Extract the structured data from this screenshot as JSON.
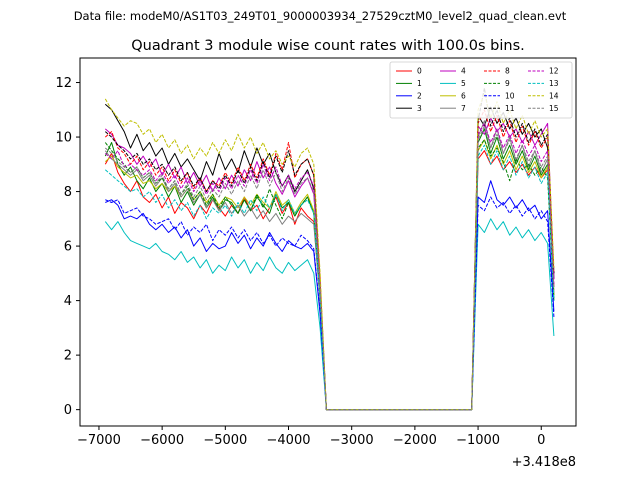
{
  "chart_data": {
    "type": "line",
    "suptitle": "Data file: modeM0/AS1T03_249T01_9000003934_27529cztM0_level2_quad_clean.evt",
    "title": "Quadrant 3 module wise count rates with 100.0s bins.",
    "xlabel": "",
    "ylabel": "",
    "x_offset_label": "+3.418e8",
    "xlim": [
      -7300,
      550
    ],
    "ylim": [
      -0.6,
      12.9
    ],
    "xticks": [
      -7000,
      -6000,
      -5000,
      -4000,
      -3000,
      -2000,
      -1000,
      0
    ],
    "xtick_labels": [
      "−7000",
      "−6000",
      "−5000",
      "−4000",
      "−3000",
      "−2000",
      "−1000",
      "0"
    ],
    "yticks": [
      0,
      2,
      4,
      6,
      8,
      10,
      12
    ],
    "ytick_labels": [
      "0",
      "2",
      "4",
      "6",
      "8",
      "10",
      "12"
    ],
    "legend_position": "upper right",
    "legend_columns": 4,
    "x": [
      -6900,
      -6800,
      -6700,
      -6600,
      -6500,
      -6400,
      -6300,
      -6200,
      -6100,
      -6000,
      -5900,
      -5800,
      -5700,
      -5600,
      -5500,
      -5400,
      -5300,
      -5200,
      -5100,
      -5000,
      -4900,
      -4800,
      -4700,
      -4600,
      -4500,
      -4400,
      -4300,
      -4200,
      -4100,
      -4000,
      -3900,
      -3800,
      -3700,
      -3600,
      -3500,
      -3400,
      -3300,
      -3200,
      -1100,
      -1000,
      -900,
      -800,
      -700,
      -600,
      -500,
      -400,
      -300,
      -200,
      -100,
      0,
      100,
      200
    ],
    "series": [
      {
        "name": "0",
        "color": "#ff0000",
        "dash": "solid",
        "values": [
          9.0,
          9.4,
          8.7,
          8.3,
          8.0,
          8.4,
          7.8,
          7.6,
          7.9,
          7.4,
          7.8,
          7.2,
          7.6,
          7.4,
          7.0,
          7.5,
          7.2,
          7.7,
          7.4,
          7.1,
          7.5,
          7.2,
          7.8,
          7.3,
          7.5,
          7.0,
          7.4,
          7.8,
          7.2,
          7.6,
          6.8,
          7.4,
          7.1,
          6.9,
          4.0,
          0.0,
          0.0,
          0.0,
          0.0,
          9.2,
          9.5,
          9.0,
          9.3,
          8.8,
          9.1,
          8.7,
          9.0,
          8.6,
          8.9,
          8.5,
          8.8,
          4.5
        ]
      },
      {
        "name": "1",
        "color": "#008000",
        "dash": "solid",
        "values": [
          9.3,
          9.8,
          9.0,
          8.6,
          8.9,
          8.4,
          8.1,
          8.5,
          8.0,
          8.3,
          7.8,
          8.2,
          7.6,
          8.0,
          7.5,
          7.9,
          7.4,
          7.8,
          7.3,
          7.7,
          7.6,
          7.2,
          7.7,
          7.3,
          7.8,
          7.5,
          7.2,
          7.9,
          7.4,
          7.6,
          7.1,
          7.5,
          7.8,
          7.2,
          4.2,
          0.0,
          0.0,
          0.0,
          0.0,
          9.8,
          10.3,
          9.4,
          10.0,
          9.2,
          9.7,
          9.0,
          9.5,
          8.8,
          9.3,
          8.6,
          9.0,
          4.0
        ]
      },
      {
        "name": "2",
        "color": "#0000ff",
        "dash": "solid",
        "values": [
          7.6,
          7.7,
          7.5,
          7.0,
          7.1,
          7.0,
          7.2,
          6.8,
          6.6,
          6.8,
          6.5,
          6.7,
          6.3,
          6.6,
          6.0,
          6.3,
          5.8,
          6.1,
          5.9,
          6.0,
          6.5,
          6.1,
          6.4,
          5.9,
          6.3,
          6.0,
          6.5,
          6.1,
          5.8,
          6.2,
          6.0,
          5.9,
          6.1,
          5.8,
          3.5,
          0.0,
          0.0,
          0.0,
          0.0,
          7.8,
          7.6,
          8.4,
          7.7,
          7.5,
          7.8,
          7.4,
          7.7,
          7.3,
          7.5,
          7.0,
          7.3,
          3.6
        ]
      },
      {
        "name": "3",
        "color": "#000000",
        "dash": "solid",
        "values": [
          11.2,
          11.0,
          10.6,
          10.2,
          9.6,
          10.1,
          9.5,
          9.8,
          9.3,
          9.6,
          9.0,
          9.4,
          8.9,
          9.2,
          8.8,
          8.4,
          9.1,
          8.6,
          9.4,
          8.8,
          9.2,
          8.7,
          9.5,
          8.9,
          9.6,
          9.0,
          9.4,
          8.7,
          8.2,
          8.6,
          8.0,
          8.4,
          8.8,
          8.1,
          4.6,
          0.0,
          0.0,
          0.0,
          0.0,
          10.8,
          10.4,
          11.1,
          10.5,
          10.9,
          10.3,
          10.7,
          10.1,
          10.5,
          10.0,
          10.3,
          9.6,
          4.8
        ]
      },
      {
        "name": "4",
        "color": "#bf00bf",
        "dash": "solid",
        "values": [
          10.3,
          10.1,
          9.7,
          9.6,
          9.4,
          9.0,
          9.3,
          8.9,
          9.2,
          8.6,
          9.0,
          8.5,
          8.9,
          8.3,
          8.7,
          8.2,
          8.6,
          8.0,
          8.5,
          8.1,
          8.6,
          8.2,
          8.8,
          8.4,
          9.1,
          8.5,
          8.9,
          8.3,
          7.9,
          8.4,
          7.8,
          8.2,
          8.5,
          7.9,
          4.5,
          0.0,
          0.0,
          0.0,
          0.0,
          10.4,
          10.1,
          10.7,
          10.2,
          10.5,
          10.0,
          10.3,
          9.8,
          10.2,
          9.7,
          10.1,
          10.5,
          4.8
        ]
      },
      {
        "name": "5",
        "color": "#00bfbf",
        "dash": "solid",
        "values": [
          6.9,
          6.6,
          6.9,
          6.5,
          6.2,
          6.1,
          6.0,
          5.9,
          6.1,
          5.8,
          5.7,
          5.5,
          5.8,
          5.4,
          5.6,
          5.2,
          5.5,
          5.0,
          5.3,
          5.1,
          5.6,
          5.2,
          5.5,
          5.0,
          5.4,
          5.1,
          5.6,
          5.2,
          5.0,
          5.4,
          5.1,
          5.3,
          5.5,
          5.0,
          3.0,
          0.0,
          0.0,
          0.0,
          0.0,
          6.8,
          6.5,
          7.0,
          6.6,
          6.9,
          6.4,
          6.7,
          6.3,
          6.6,
          6.2,
          6.5,
          6.1,
          2.7
        ]
      },
      {
        "name": "6",
        "color": "#bfbf00",
        "dash": "solid",
        "values": [
          9.1,
          9.3,
          8.9,
          8.7,
          8.5,
          8.6,
          8.3,
          8.4,
          8.1,
          8.3,
          8.0,
          8.2,
          7.8,
          8.1,
          7.7,
          8.0,
          7.6,
          7.9,
          7.5,
          7.8,
          7.7,
          7.4,
          7.8,
          7.5,
          7.9,
          7.6,
          7.4,
          8.0,
          7.5,
          7.7,
          7.2,
          7.6,
          7.9,
          7.3,
          4.3,
          0.0,
          0.0,
          0.0,
          0.0,
          9.5,
          9.9,
          9.2,
          9.7,
          9.0,
          9.5,
          8.8,
          9.3,
          8.7,
          9.1,
          8.5,
          8.9,
          4.2
        ]
      },
      {
        "name": "7",
        "color": "#808080",
        "dash": "solid",
        "values": [
          9.5,
          9.2,
          9.0,
          8.8,
          8.6,
          8.8,
          8.4,
          8.6,
          8.2,
          8.5,
          8.0,
          8.3,
          7.8,
          8.1,
          7.6,
          7.9,
          7.4,
          7.7,
          7.3,
          7.6,
          7.2,
          7.5,
          7.1,
          7.4,
          7.0,
          7.3,
          6.9,
          7.2,
          6.8,
          7.1,
          6.9,
          7.2,
          7.0,
          6.8,
          4.0,
          0.0,
          0.0,
          0.0,
          0.0,
          10.0,
          10.6,
          9.6,
          10.3,
          9.4,
          10.0,
          9.1,
          9.7,
          8.9,
          9.5,
          8.7,
          9.2,
          4.3
        ]
      },
      {
        "name": "8",
        "color": "#ff0000",
        "dash": "dashed",
        "values": [
          10.0,
          10.2,
          9.6,
          9.4,
          9.0,
          9.3,
          8.8,
          9.1,
          8.6,
          8.9,
          8.4,
          8.8,
          8.3,
          8.7,
          8.1,
          8.5,
          8.0,
          8.4,
          8.2,
          8.7,
          8.3,
          8.9,
          8.4,
          9.0,
          8.5,
          9.2,
          8.6,
          9.4,
          8.8,
          9.8,
          8.5,
          9.0,
          9.2,
          8.6,
          4.8,
          0.0,
          0.0,
          0.0,
          0.0,
          10.5,
          11.0,
          10.2,
          10.8,
          10.0,
          10.6,
          9.8,
          10.4,
          9.7,
          10.2,
          9.6,
          10.0,
          5.0
        ]
      },
      {
        "name": "9",
        "color": "#008000",
        "dash": "dashed",
        "values": [
          9.8,
          9.5,
          9.2,
          9.0,
          8.7,
          8.9,
          8.5,
          8.7,
          8.3,
          8.5,
          8.1,
          8.4,
          7.9,
          8.2,
          7.7,
          8.0,
          7.5,
          7.9,
          7.4,
          7.8,
          7.5,
          7.2,
          7.7,
          7.3,
          7.9,
          7.4,
          8.1,
          7.5,
          7.0,
          7.6,
          7.1,
          7.5,
          7.8,
          7.2,
          4.2,
          0.0,
          0.0,
          0.0,
          0.0,
          9.6,
          9.9,
          9.3,
          9.6,
          9.1,
          8.4,
          9.2,
          8.8,
          9.0,
          8.6,
          8.9,
          8.5,
          4.1
        ]
      },
      {
        "name": "10",
        "color": "#0000ff",
        "dash": "dashed",
        "values": [
          7.7,
          7.6,
          7.7,
          7.2,
          7.3,
          7.4,
          7.1,
          7.0,
          6.8,
          6.9,
          7.0,
          6.6,
          6.9,
          6.4,
          6.7,
          6.5,
          6.8,
          6.2,
          6.6,
          6.4,
          6.7,
          6.3,
          6.6,
          6.2,
          6.5,
          6.1,
          6.4,
          6.0,
          6.3,
          6.1,
          6.0,
          6.4,
          6.2,
          5.9,
          3.6,
          0.0,
          0.0,
          0.0,
          0.0,
          7.5,
          7.3,
          7.8,
          7.4,
          7.6,
          7.2,
          7.5,
          7.1,
          7.4,
          7.0,
          7.3,
          6.9,
          3.4
        ]
      },
      {
        "name": "11",
        "color": "#000000",
        "dash": "dashed",
        "values": [
          10.2,
          10.0,
          9.7,
          9.5,
          9.2,
          9.4,
          9.0,
          9.2,
          8.8,
          9.0,
          8.6,
          8.9,
          8.4,
          8.7,
          8.2,
          8.5,
          8.0,
          8.4,
          8.1,
          8.6,
          8.2,
          8.8,
          8.3,
          8.9,
          8.4,
          9.1,
          8.5,
          9.3,
          8.7,
          9.5,
          8.6,
          9.0,
          9.2,
          8.6,
          4.7,
          0.0,
          0.0,
          0.0,
          0.0,
          10.6,
          11.8,
          10.4,
          11.0,
          10.2,
          10.7,
          10.0,
          10.5,
          9.8,
          10.3,
          9.7,
          10.1,
          5.0
        ]
      },
      {
        "name": "12",
        "color": "#bf00bf",
        "dash": "dashed",
        "values": [
          9.4,
          9.2,
          9.5,
          8.9,
          9.0,
          8.8,
          8.6,
          8.8,
          8.4,
          8.7,
          8.3,
          8.6,
          8.1,
          8.5,
          8.0,
          8.4,
          7.9,
          8.3,
          8.0,
          8.5,
          8.1,
          8.6,
          8.2,
          8.8,
          8.3,
          9.0,
          8.4,
          8.9,
          8.2,
          8.6,
          8.1,
          8.5,
          8.7,
          8.2,
          4.5,
          0.0,
          0.0,
          0.0,
          0.0,
          10.1,
          10.5,
          9.8,
          10.3,
          9.6,
          10.1,
          9.4,
          9.9,
          9.3,
          9.7,
          9.1,
          9.5,
          4.6
        ]
      },
      {
        "name": "13",
        "color": "#00bfbf",
        "dash": "dashed",
        "values": [
          8.8,
          8.6,
          8.4,
          8.2,
          8.0,
          8.1,
          7.8,
          8.0,
          7.6,
          7.9,
          7.4,
          7.7,
          7.3,
          7.6,
          7.1,
          7.5,
          7.0,
          7.4,
          7.2,
          7.5,
          7.1,
          7.6,
          7.2,
          7.7,
          7.3,
          7.8,
          7.4,
          7.9,
          7.3,
          7.7,
          7.2,
          7.5,
          7.7,
          7.2,
          4.1,
          0.0,
          0.0,
          0.0,
          0.0,
          9.3,
          9.7,
          9.0,
          9.5,
          8.8,
          9.3,
          8.6,
          9.1,
          8.5,
          8.9,
          8.3,
          8.7,
          4.0
        ]
      },
      {
        "name": "14",
        "color": "#bfbf00",
        "dash": "dashed",
        "values": [
          11.4,
          11.0,
          10.7,
          10.4,
          10.6,
          10.5,
          10.1,
          10.3,
          9.8,
          10.1,
          9.6,
          9.9,
          9.4,
          9.7,
          9.2,
          9.6,
          9.3,
          9.8,
          9.4,
          9.9,
          9.5,
          10.1,
          9.6,
          10.0,
          9.4,
          9.8,
          9.2,
          9.5,
          9.0,
          9.3,
          8.9,
          9.4,
          9.6,
          9.0,
          5.0,
          0.0,
          0.0,
          0.0,
          0.0,
          11.0,
          11.6,
          10.7,
          11.3,
          10.5,
          11.0,
          10.3,
          10.8,
          10.1,
          10.6,
          10.0,
          10.3,
          5.2
        ]
      },
      {
        "name": "15",
        "color": "#808080",
        "dash": "dashed",
        "values": [
          9.6,
          9.4,
          9.1,
          8.9,
          8.7,
          8.9,
          8.5,
          8.7,
          8.3,
          8.6,
          8.1,
          8.4,
          7.9,
          8.3,
          7.8,
          8.2,
          7.7,
          8.1,
          7.8,
          8.3,
          7.9,
          8.4,
          8.0,
          8.6,
          8.1,
          8.8,
          8.2,
          8.7,
          8.0,
          8.5,
          7.9,
          8.3,
          8.5,
          8.0,
          4.4,
          0.0,
          0.0,
          0.0,
          0.0,
          9.9,
          10.4,
          9.6,
          10.1,
          9.4,
          9.9,
          9.2,
          9.7,
          9.1,
          9.5,
          8.9,
          9.3,
          4.4
        ]
      }
    ]
  }
}
